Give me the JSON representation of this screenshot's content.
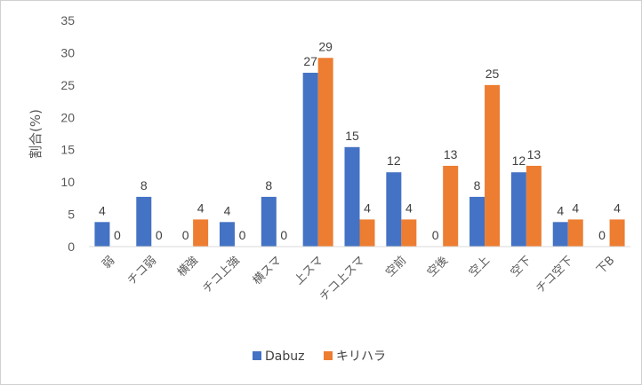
{
  "chart_data": {
    "type": "bar",
    "title": "",
    "xlabel": "",
    "ylabel": "割合(%)",
    "ylim": [
      0,
      35
    ],
    "yticks": [
      0,
      5,
      10,
      15,
      20,
      25,
      30,
      35
    ],
    "grid": false,
    "legend_position": "bottom",
    "categories": [
      "弱",
      "チコ弱",
      "横強",
      "チコ上強",
      "横スマ",
      "上スマ",
      "チコ上スマ",
      "空前",
      "空後",
      "空上",
      "空下",
      "チコ空下",
      "下B"
    ],
    "series": [
      {
        "name": "Dabuz",
        "color": "#4472c4",
        "values": [
          3.8,
          7.7,
          0,
          3.8,
          7.7,
          26.9,
          15.4,
          11.5,
          0,
          7.7,
          11.5,
          3.8,
          0
        ],
        "labels": [
          "4",
          "8",
          "0",
          "4",
          "8",
          "27",
          "15",
          "12",
          "0",
          "8",
          "12",
          "4",
          "0"
        ]
      },
      {
        "name": "キリハラ",
        "color": "#ed7d31",
        "values": [
          0,
          0,
          4.2,
          0,
          0,
          29.2,
          4.2,
          4.2,
          12.5,
          25.0,
          12.5,
          4.2,
          4.2
        ],
        "labels": [
          "0",
          "0",
          "4",
          "0",
          "0",
          "29",
          "4",
          "4",
          "13",
          "25",
          "13",
          "4",
          "4"
        ]
      }
    ]
  }
}
